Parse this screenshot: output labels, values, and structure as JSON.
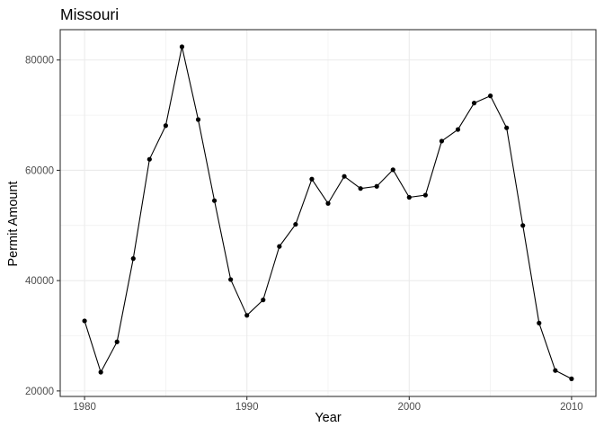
{
  "chart_data": {
    "type": "line",
    "title": "Missouri",
    "xlabel": "Year",
    "ylabel": "Permit Amount",
    "x": [
      1980,
      1981,
      1982,
      1983,
      1984,
      1985,
      1986,
      1987,
      1988,
      1989,
      1990,
      1991,
      1992,
      1993,
      1994,
      1995,
      1996,
      1997,
      1998,
      1999,
      2000,
      2001,
      2002,
      2003,
      2004,
      2005,
      2006,
      2007,
      2008,
      2009,
      2010
    ],
    "series": [
      {
        "values": [
          32700,
          23400,
          28900,
          44000,
          62000,
          68100,
          82400,
          69200,
          54500,
          40200,
          33700,
          36500,
          46200,
          50200,
          58400,
          54000,
          58900,
          56700,
          57100,
          60100,
          55100,
          55500,
          65300,
          67400,
          72200,
          73500,
          67700,
          50000,
          32300,
          23700,
          22200
        ]
      }
    ],
    "xticks": [
      "1980",
      "1990",
      "2000",
      "2010"
    ],
    "yticks": [
      "20000",
      "40000",
      "60000",
      "80000"
    ],
    "xlim": [
      1978.5,
      2011.5
    ],
    "ylim": [
      19000,
      85500
    ],
    "grid": true,
    "legend": "none",
    "colors": {
      "line": "#000000",
      "point": "#000000",
      "grid": "#ebebeb",
      "panel_border": "#333333",
      "background": "#ffffff"
    }
  }
}
